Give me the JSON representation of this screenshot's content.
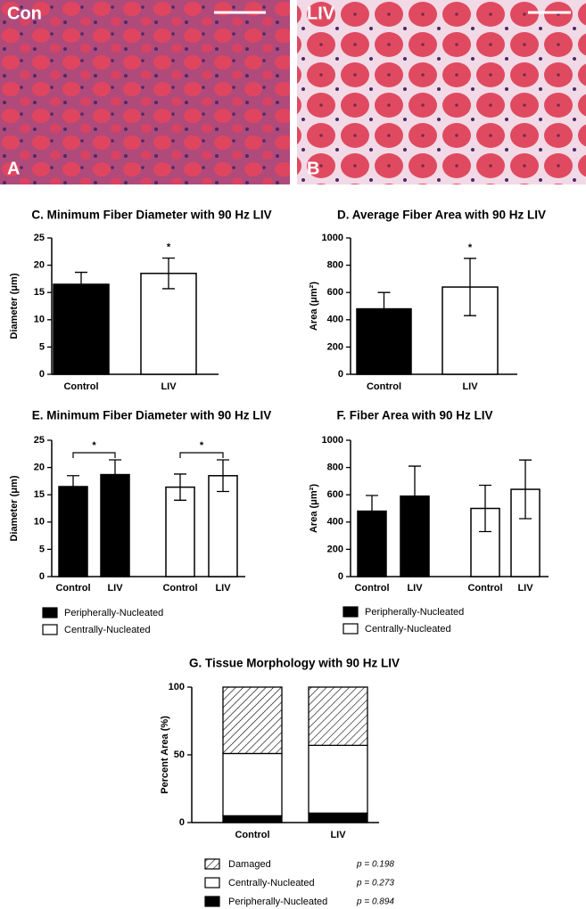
{
  "panels": [
    {
      "label": "Con",
      "letter": "A"
    },
    {
      "label": "LIV",
      "letter": "B"
    }
  ],
  "chart_data": [
    {
      "type": "bar",
      "title": "C. Minimum Fiber Diameter with 90 Hz LIV",
      "y_label": "Diameter (μm)",
      "categories": [
        "Control",
        "LIV"
      ],
      "values": [
        16.5,
        18.5
      ],
      "errors": [
        2.2,
        2.8
      ],
      "colors": [
        "#000000",
        "#ffffff"
      ],
      "annotation": "*",
      "ylim": [
        0,
        25
      ],
      "yticks": [
        0,
        5,
        10,
        15,
        20,
        25
      ]
    },
    {
      "type": "bar",
      "title": "D. Average Fiber Area with 90 Hz LIV",
      "y_label": "Area (μm²)",
      "categories": [
        "Control",
        "LIV"
      ],
      "values": [
        480,
        640
      ],
      "errors": [
        120,
        210
      ],
      "colors": [
        "#000000",
        "#ffffff"
      ],
      "annotation": "*",
      "ylim": [
        0,
        1000
      ],
      "yticks": [
        0,
        200,
        400,
        600,
        800,
        1000
      ]
    },
    {
      "type": "grouped_bar",
      "title": "E. Minimum Fiber Diameter with 90 Hz LIV",
      "y_label": "Diameter (μm)",
      "categories": [
        "Control",
        "LIV"
      ],
      "series": [
        {
          "name": "Peripherally-Nucleated",
          "color": "#000000",
          "values": [
            16.5,
            18.7
          ],
          "errors": [
            2.0,
            2.7
          ],
          "annotation": "*"
        },
        {
          "name": "Centrally-Nucleated",
          "color": "#ffffff",
          "values": [
            16.4,
            18.5
          ],
          "errors": [
            2.4,
            2.9
          ],
          "annotation": "*"
        }
      ],
      "ylim": [
        0,
        25
      ],
      "yticks": [
        0,
        5,
        10,
        15,
        20,
        25
      ]
    },
    {
      "type": "grouped_bar",
      "title": "F.  Fiber Area with 90 Hz LIV",
      "y_label": "Area (μm²)",
      "categories": [
        "Control",
        "LIV"
      ],
      "series": [
        {
          "name": "Peripherally-Nucleated",
          "color": "#000000",
          "values": [
            480,
            590
          ],
          "errors": [
            115,
            220
          ]
        },
        {
          "name": "Centrally-Nucleated",
          "color": "#ffffff",
          "values": [
            500,
            640
          ],
          "errors": [
            170,
            215
          ]
        }
      ],
      "ylim": [
        0,
        1000
      ],
      "yticks": [
        0,
        200,
        400,
        600,
        800,
        1000
      ]
    },
    {
      "type": "stacked_bar",
      "title": "G. Tissue Morphology with 90 Hz LIV",
      "y_label": "Percent Area (%)",
      "categories": [
        "Control",
        "LIV"
      ],
      "series": [
        {
          "name": "Peripherally-Nucleated",
          "color": "#000000",
          "values": [
            5,
            7
          ],
          "p_label": "p = 0.894"
        },
        {
          "name": "Centrally-Nucleated",
          "color": "#ffffff",
          "values": [
            46,
            50
          ],
          "p_label": "p = 0.273"
        },
        {
          "name": "Damaged",
          "color": "#ffffff",
          "hatch": true,
          "values": [
            49,
            43
          ],
          "p_label": "p = 0.198"
        }
      ],
      "ylim": [
        0,
        100
      ],
      "yticks": [
        0,
        50,
        100
      ]
    }
  ]
}
